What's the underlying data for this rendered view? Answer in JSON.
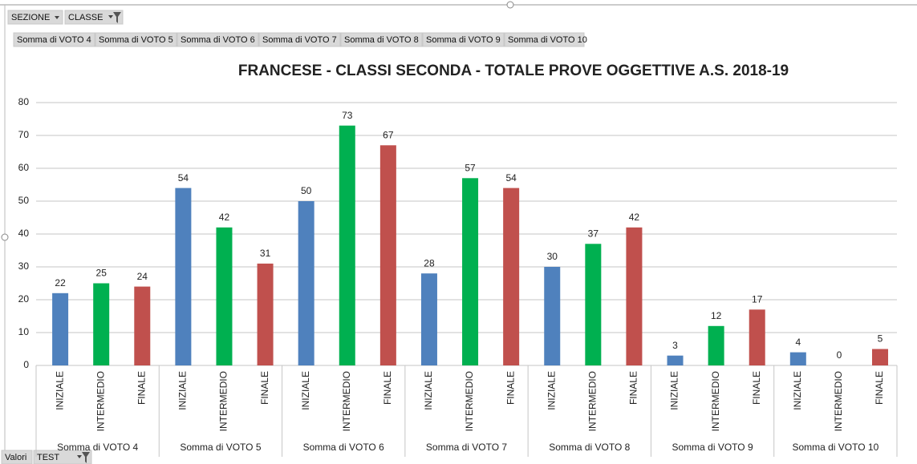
{
  "filter_buttons": [
    "SEZIONE",
    "CLASSE"
  ],
  "value_buttons": [
    "Somma di VOTO 4",
    "Somma di VOTO 5",
    "Somma di VOTO 6",
    "Somma di VOTO 7",
    "Somma di VOTO 8",
    "Somma di VOTO 9",
    "Somma di VOTO 10"
  ],
  "bottom_buttons": [
    "Valori",
    "TEST"
  ],
  "chart_data": {
    "type": "bar",
    "title": "FRANCESE - CLASSI SECONDA - TOTALE PROVE OGGETTIVE A.S. 2018-19",
    "categories": [
      "Somma di VOTO 4",
      "Somma di VOTO 5",
      "Somma di VOTO 6",
      "Somma di VOTO 7",
      "Somma di VOTO 8",
      "Somma di VOTO 9",
      "Somma di VOTO 10"
    ],
    "series": [
      {
        "name": "INIZIALE",
        "color": "#4f81bd",
        "values": [
          22,
          54,
          50,
          28,
          30,
          3,
          4
        ]
      },
      {
        "name": "INTERMEDIO",
        "color": "#00b050",
        "values": [
          25,
          42,
          73,
          57,
          37,
          12,
          0
        ]
      },
      {
        "name": "FINALE",
        "color": "#c0504d",
        "values": [
          24,
          31,
          67,
          54,
          42,
          17,
          5
        ]
      }
    ],
    "ylim": [
      0,
      80
    ],
    "yticks": [
      0,
      10,
      20,
      30,
      40,
      50,
      60,
      70,
      80
    ],
    "grid": true
  }
}
